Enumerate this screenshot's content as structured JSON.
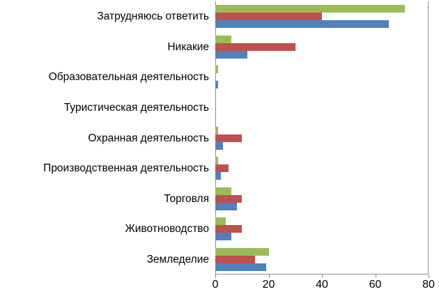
{
  "chart_data": {
    "type": "bar",
    "orientation": "horizontal",
    "title": "",
    "xlabel": "",
    "ylabel": "",
    "xlim": [
      0,
      80
    ],
    "xticks": [
      0,
      20,
      40,
      60,
      80
    ],
    "grid": false,
    "legend": false,
    "categories": [
      "Затрудняюсь ответить",
      "Никакие",
      "Образовательная деятельность",
      "Туристическая деятельность",
      "Охранная деятельность",
      "Производственная деятельность",
      "Торговля",
      "Животноводство",
      "Земледелие"
    ],
    "series": [
      {
        "name": "green-series",
        "color": "#9BBB59",
        "values": [
          71,
          6,
          1,
          0,
          1,
          1,
          6,
          4,
          20
        ]
      },
      {
        "name": "red-series",
        "color": "#C0504D",
        "values": [
          40,
          30,
          0,
          0,
          10,
          5,
          10,
          10,
          15
        ]
      },
      {
        "name": "blue-series",
        "color": "#4F81BD",
        "values": [
          65,
          12,
          1,
          0,
          3,
          2,
          8,
          6,
          19
        ]
      }
    ],
    "colors": {
      "axis_line": "#8e8e8e",
      "text": "#000000",
      "background": "#ffffff"
    }
  }
}
